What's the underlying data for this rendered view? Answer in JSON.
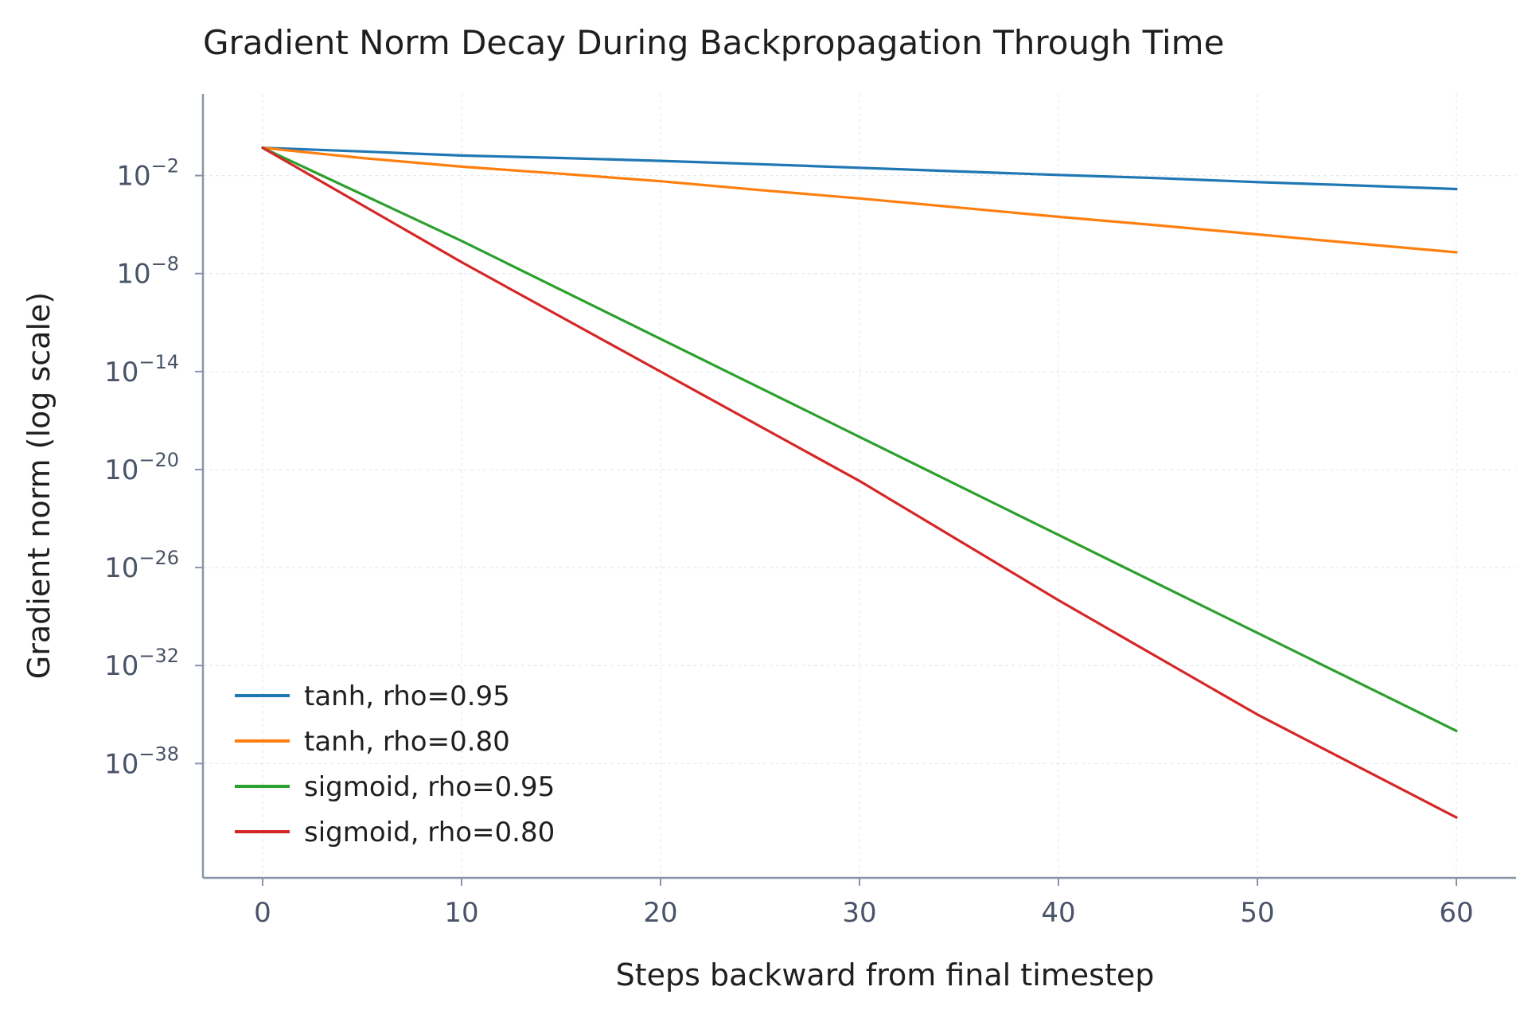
{
  "chart_data": {
    "type": "line",
    "title": "Gradient Norm Decay During Backpropagation Through Time",
    "xlabel": "Steps backward from final timestep",
    "ylabel": "Gradient norm (log scale)",
    "y_scale": "log",
    "xlim": [
      -3,
      63
    ],
    "ylim": [
      1e-45,
      1000.0
    ],
    "x_ticks": [
      0,
      10,
      20,
      30,
      40,
      50,
      60
    ],
    "y_ticks": [
      {
        "base": "10",
        "exp": "−2",
        "value": 0.01
      },
      {
        "base": "10",
        "exp": "−8",
        "value": 1e-08
      },
      {
        "base": "10",
        "exp": "−14",
        "value": 1e-14
      },
      {
        "base": "10",
        "exp": "−20",
        "value": 1e-20
      },
      {
        "base": "10",
        "exp": "−26",
        "value": 1e-26
      },
      {
        "base": "10",
        "exp": "−32",
        "value": 1e-32
      },
      {
        "base": "10",
        "exp": "−38",
        "value": 1e-38
      }
    ],
    "grid": true,
    "legend_position": "lower-left",
    "series": [
      {
        "name": "tanh, rho=0.95",
        "color": "#1f77b4",
        "x": [
          0,
          5,
          10,
          15,
          20,
          25,
          30,
          35,
          40,
          45,
          50,
          55,
          60
        ],
        "y": [
          0.5,
          0.3,
          0.17,
          0.12,
          0.08,
          0.05,
          0.03,
          0.018,
          0.011,
          0.007,
          0.004,
          0.0025,
          0.0015
        ]
      },
      {
        "name": "tanh, rho=0.80",
        "color": "#ff7f0e",
        "x": [
          0,
          5,
          10,
          15,
          20,
          25,
          30,
          35,
          40,
          45,
          50,
          55,
          60
        ],
        "y": [
          0.5,
          0.12,
          0.035,
          0.013,
          0.0045,
          0.0013,
          0.0004,
          0.00011,
          3e-05,
          9e-06,
          2.5e-06,
          7e-07,
          2e-07
        ]
      },
      {
        "name": "sigmoid, rho=0.95",
        "color": "#2ca02c",
        "x": [
          0,
          10,
          20,
          30,
          40,
          50,
          60
        ],
        "y": [
          0.5,
          1e-06,
          1e-12,
          1e-18,
          1e-24,
          1e-30,
          1e-36
        ]
      },
      {
        "name": "sigmoid, rho=0.80",
        "color": "#d62728",
        "x": [
          0,
          10,
          20,
          30,
          40,
          50,
          60
        ],
        "y": [
          0.5,
          5e-08,
          1e-14,
          2e-21,
          1e-28,
          1e-35,
          5e-42
        ]
      }
    ]
  }
}
